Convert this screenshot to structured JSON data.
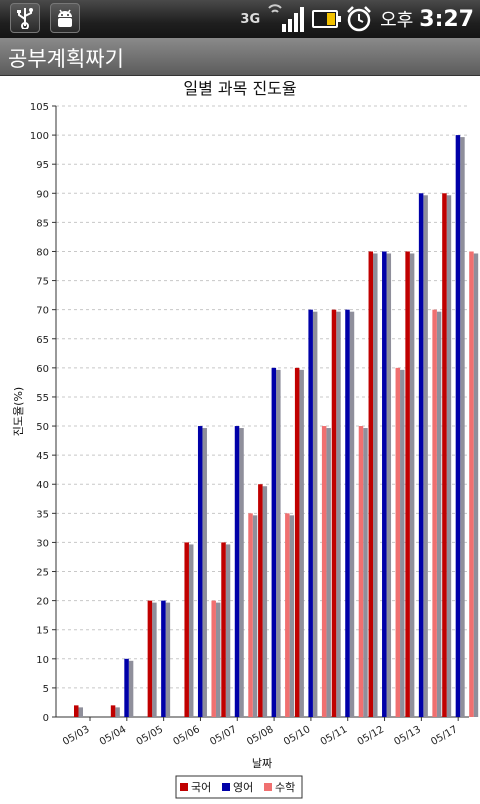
{
  "status_bar": {
    "network_type": "3G",
    "clock_ampm": "오후",
    "clock_time": "3:27",
    "icons": [
      "usb-icon",
      "android-debug-icon",
      "signal-icon",
      "battery-icon",
      "alarm-icon"
    ]
  },
  "app": {
    "title": "공부계획짜기"
  },
  "colors": {
    "korean": "#c00000",
    "english": "#0000a8",
    "math": "#f07070",
    "shadow": "#8f8f9b"
  },
  "chart_data": {
    "type": "bar",
    "title": "일별 과목 진도율",
    "xlabel": "날짜",
    "ylabel": "진도율(%)",
    "ylim": [
      0,
      105
    ],
    "ytick_step": 5,
    "grid": true,
    "legend_position": "bottom",
    "categories": [
      "05/03",
      "05/04",
      "05/05",
      "05/06",
      "05/07",
      "05/08",
      "05/10",
      "05/11",
      "05/12",
      "05/13",
      "05/17"
    ],
    "series": [
      {
        "name": "국어",
        "values": [
          2,
          2,
          20,
          30,
          30,
          40,
          60,
          70,
          80,
          80,
          90
        ]
      },
      {
        "name": "영어",
        "values": [
          0,
          10,
          20,
          50,
          50,
          60,
          70,
          70,
          80,
          90,
          100
        ]
      },
      {
        "name": "수학",
        "values": [
          0,
          0,
          0,
          20,
          35,
          35,
          50,
          50,
          60,
          70,
          80
        ]
      }
    ]
  }
}
